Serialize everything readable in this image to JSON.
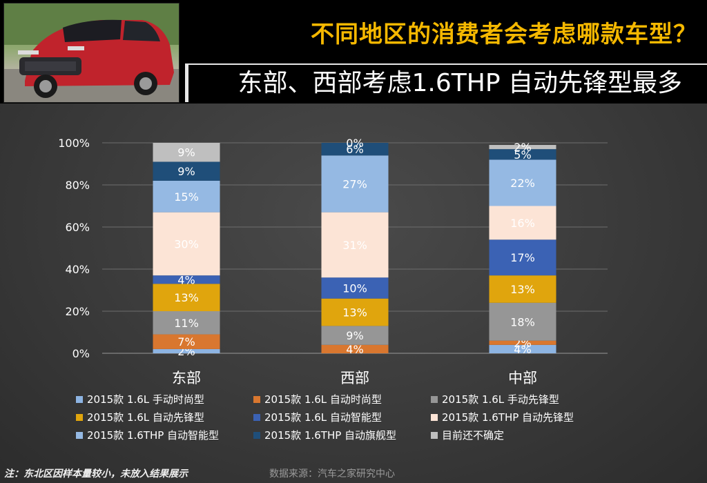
{
  "header": {
    "title": "不同地区的消费者会考虑哪款车型？",
    "subtitle": "东部、西部考虑1.6THP 自动先锋型最多"
  },
  "chart_data": {
    "type": "bar",
    "stacked": true,
    "categories": [
      "东部",
      "西部",
      "中部"
    ],
    "ylim": [
      0,
      100
    ],
    "y_ticks": [
      "0%",
      "20%",
      "40%",
      "60%",
      "80%",
      "100%"
    ],
    "grid": true,
    "legend_position": "bottom",
    "series": [
      {
        "name": "2015款 1.6L 手动时尚型",
        "color": "#8db4e2",
        "values": [
          2,
          0,
          4
        ],
        "labels": [
          "2%",
          "",
          "4%"
        ]
      },
      {
        "name": "2015款 1.6L 自动时尚型",
        "color": "#d9772f",
        "values": [
          7,
          4,
          2
        ],
        "labels": [
          "7%",
          "4%",
          "2%"
        ]
      },
      {
        "name": "2015款 1.6L 手动先锋型",
        "color": "#969696",
        "values": [
          11,
          9,
          18
        ],
        "labels": [
          "11%",
          "9%",
          "18%"
        ]
      },
      {
        "name": "2015款 1.6L 自动先锋型",
        "color": "#e0a50d",
        "values": [
          13,
          13,
          13
        ],
        "labels": [
          "13%",
          "13%",
          "13%"
        ]
      },
      {
        "name": "2015款 1.6L 自动智能型",
        "color": "#3b62b4",
        "values": [
          4,
          10,
          17
        ],
        "labels": [
          "4%",
          "10%",
          "17%"
        ]
      },
      {
        "name": "2015款 1.6THP 自动先锋型",
        "color": "#fce4d6",
        "values": [
          30,
          31,
          16
        ],
        "labels": [
          "30%",
          "31%",
          "16%"
        ]
      },
      {
        "name": "2015款 1.6THP 自动智能型",
        "color": "#95b9e3",
        "values": [
          15,
          27,
          22
        ],
        "labels": [
          "15%",
          "27%",
          "22%"
        ]
      },
      {
        "name": "2015款 1.6THP 自动旗舰型",
        "color": "#1f4e79",
        "values": [
          9,
          6,
          5
        ],
        "labels": [
          "9%",
          "6%",
          "5%"
        ]
      },
      {
        "name": "目前还不确定",
        "color": "#bfbfbf",
        "values": [
          9,
          0,
          2
        ],
        "labels": [
          "9%",
          "0%",
          "2%"
        ]
      }
    ]
  },
  "footer": {
    "note": "注：东北区因样本量较小，未放入结果展示",
    "source": "数据来源：汽车之家研究中心"
  }
}
